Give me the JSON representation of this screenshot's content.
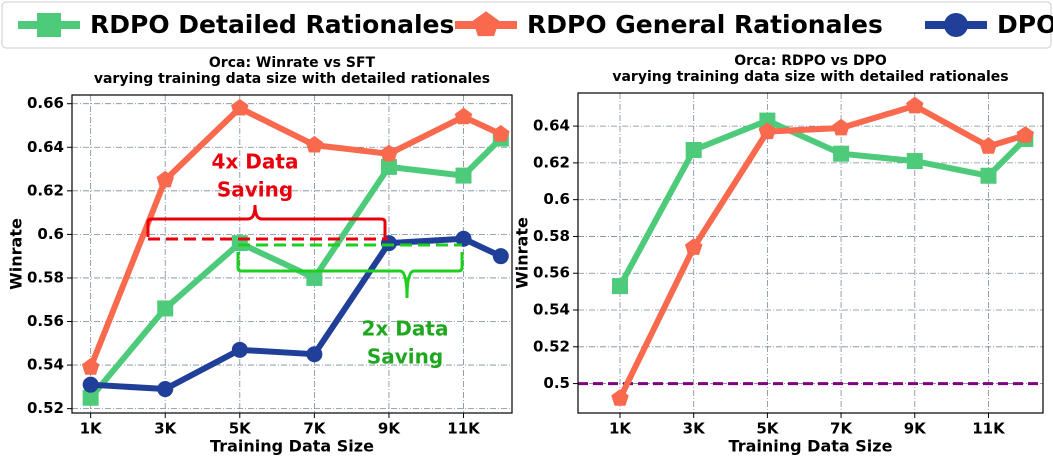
{
  "chart_data": [
    {
      "type": "line",
      "title": "Orca: Winrate vs SFT",
      "subtitle": "varying training data size with detailed rationales",
      "xlabel": "Training Data Size",
      "ylabel": "Winrate",
      "x": [
        1000,
        3000,
        5000,
        7000,
        9000,
        11000,
        12000
      ],
      "xlim": [
        500,
        12300
      ],
      "xticks": [
        {
          "value": 1000,
          "label": "1K"
        },
        {
          "value": 3000,
          "label": "3K"
        },
        {
          "value": 5000,
          "label": "5K"
        },
        {
          "value": 7000,
          "label": "7K"
        },
        {
          "value": 9000,
          "label": "9K"
        },
        {
          "value": 11000,
          "label": "11K"
        }
      ],
      "ylim": [
        0.518,
        0.664
      ],
      "yticks": [
        0.52,
        0.54,
        0.56,
        0.58,
        0.6,
        0.62,
        0.64,
        0.66
      ],
      "grid": true,
      "series": [
        {
          "name": "RDPO Detailed Rationales",
          "color": "#4dcb7b",
          "marker": "square",
          "values": [
            0.525,
            0.566,
            0.596,
            0.58,
            0.631,
            0.627,
            0.644
          ]
        },
        {
          "name": "RDPO General Rationales",
          "color": "#f8694d",
          "marker": "pentagon",
          "values": [
            0.539,
            0.625,
            0.658,
            0.641,
            0.637,
            0.654,
            0.646
          ]
        },
        {
          "name": "DPO",
          "color": "#203f98",
          "marker": "circle",
          "values": [
            0.531,
            0.529,
            0.547,
            0.545,
            0.596,
            0.598,
            0.59
          ]
        }
      ],
      "annotations": [
        {
          "lines": [
            "4x Data",
            "Saving"
          ],
          "color": "#e8000b"
        },
        {
          "lines": [
            "2x Data",
            "Saving"
          ],
          "color": "#1fa81f"
        }
      ]
    },
    {
      "type": "line",
      "title": "Orca: RDPO vs DPO",
      "subtitle": "varying training data size with detailed rationales",
      "xlabel": "Training Data Size",
      "ylabel": "Winrate",
      "x": [
        1000,
        3000,
        5000,
        7000,
        9000,
        11000,
        12000
      ],
      "xlim": [
        -140,
        12480
      ],
      "xticks": [
        {
          "value": 1000,
          "label": "1K"
        },
        {
          "value": 3000,
          "label": "3K"
        },
        {
          "value": 5000,
          "label": "5K"
        },
        {
          "value": 7000,
          "label": "7K"
        },
        {
          "value": 9000,
          "label": "9K"
        },
        {
          "value": 11000,
          "label": "11K"
        }
      ],
      "ylim": [
        0.484,
        0.658
      ],
      "yticks": [
        0.5,
        0.52,
        0.54,
        0.56,
        0.58,
        0.6,
        0.62,
        0.64
      ],
      "grid": true,
      "hline": {
        "value": 0.5,
        "color": "#800080"
      },
      "series": [
        {
          "color": "#4dcb7b",
          "marker": "square",
          "values": [
            0.553,
            0.627,
            0.643,
            0.625,
            0.621,
            0.613,
            0.633
          ]
        },
        {
          "color": "#f8694d",
          "marker": "pentagon",
          "values": [
            0.492,
            0.574,
            0.637,
            0.639,
            0.651,
            0.629,
            0.635
          ]
        }
      ]
    }
  ]
}
